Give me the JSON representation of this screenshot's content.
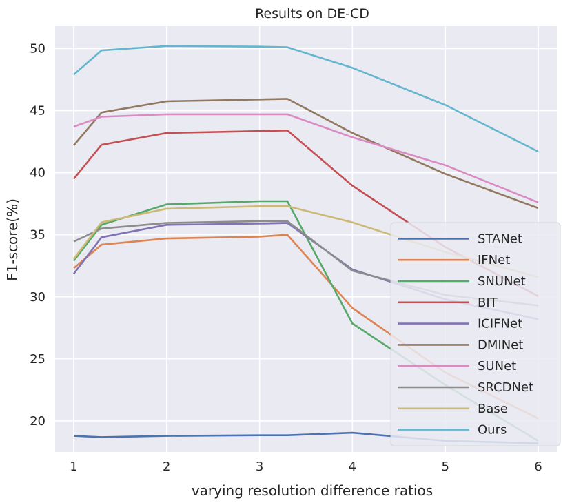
{
  "chart_data": {
    "type": "line",
    "title": "Results on DE-CD",
    "xlabel": "varying resolution difference ratios",
    "ylabel": "F1-score(%)",
    "xlim": [
      0.8,
      6.2
    ],
    "ylim": [
      17.5,
      51.8
    ],
    "xticks": [
      1,
      2,
      3,
      4,
      5,
      6
    ],
    "yticks": [
      20,
      25,
      30,
      35,
      40,
      45,
      50
    ],
    "grid": true,
    "legend_position": "lower-right",
    "x": [
      1,
      1.3,
      2,
      3,
      3.3,
      4,
      5,
      6
    ],
    "series": [
      {
        "name": "STANet",
        "color": "#4c72b0",
        "values": [
          18.8,
          18.7,
          18.8,
          18.85,
          18.85,
          19.05,
          18.4,
          18.2
        ]
      },
      {
        "name": "IFNet",
        "color": "#dd8452",
        "values": [
          32.3,
          34.2,
          34.7,
          34.85,
          35.0,
          29.1,
          23.9,
          20.2
        ]
      },
      {
        "name": "SNUNet",
        "color": "#55a868",
        "values": [
          32.9,
          35.8,
          37.45,
          37.7,
          37.7,
          27.85,
          22.9,
          18.4
        ]
      },
      {
        "name": "BIT",
        "color": "#c44e52",
        "values": [
          39.5,
          42.25,
          43.2,
          43.35,
          43.4,
          38.95,
          34.0,
          30.05
        ]
      },
      {
        "name": "ICIFNet",
        "color": "#8172b3",
        "values": [
          31.85,
          34.8,
          35.8,
          35.9,
          35.95,
          32.2,
          29.8,
          28.2
        ]
      },
      {
        "name": "DMINet",
        "color": "#937860",
        "values": [
          42.2,
          44.85,
          45.75,
          45.9,
          45.95,
          43.2,
          39.9,
          37.15
        ]
      },
      {
        "name": "SUNet",
        "color": "#da8bc3",
        "values": [
          43.7,
          44.5,
          44.7,
          44.7,
          44.7,
          42.85,
          40.6,
          37.6
        ]
      },
      {
        "name": "SRCDNet",
        "color": "#8c8c8c",
        "values": [
          34.45,
          35.5,
          35.95,
          36.1,
          36.1,
          32.1,
          30.15,
          29.3
        ]
      },
      {
        "name": "Base",
        "color": "#ccb974",
        "values": [
          33.05,
          36.0,
          37.1,
          37.3,
          37.3,
          36.0,
          33.6,
          31.6
        ]
      },
      {
        "name": "Ours",
        "color": "#64b5cd",
        "values": [
          47.9,
          49.85,
          50.2,
          50.15,
          50.1,
          48.45,
          45.45,
          41.7
        ]
      }
    ]
  }
}
